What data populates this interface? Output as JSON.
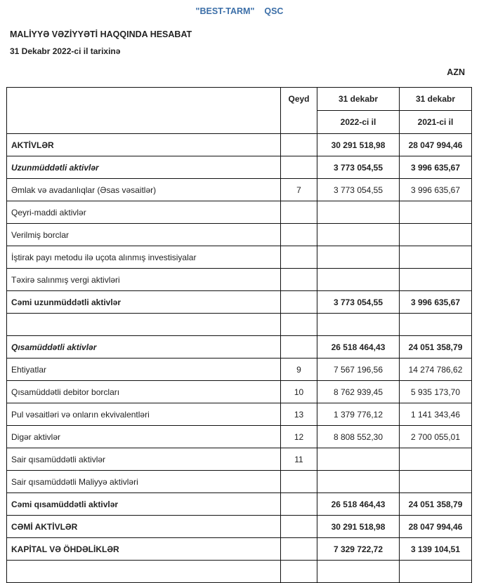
{
  "header": {
    "company_name": "\"BEST-TARM\"",
    "company_form": "QSC",
    "title": "MALİYYƏ VƏZİYYƏTİ HAQQINDA HESABAT",
    "date": "31 Dekabr 2022-ci il tarixinə",
    "currency": "AZN"
  },
  "table": {
    "columns": {
      "note": "Qeyd",
      "col1_top": "31 dekabr",
      "col1_bottom": "2022-ci il",
      "col2_top": "31 dekabr",
      "col2_bottom": "2021-ci il"
    },
    "rows": [
      {
        "label": "AKTİVLƏR",
        "note": "",
        "v2022": "30 291 518,98",
        "v2021": "28 047 994,46",
        "style": "bold"
      },
      {
        "label": "Uzunmüddətli aktivlər",
        "note": "",
        "v2022": "3 773 054,55",
        "v2021": "3 996 635,67",
        "style": "italic"
      },
      {
        "label": "Əmlak və avadanlıqlar (Əsas vəsaitlər)",
        "note": "7",
        "v2022": "3 773 054,55",
        "v2021": "3 996 635,67",
        "style": ""
      },
      {
        "label": "Qeyri-maddi aktivlər",
        "note": "",
        "v2022": "",
        "v2021": "",
        "style": ""
      },
      {
        "label": "Verilmiş borclar",
        "note": "",
        "v2022": "",
        "v2021": "",
        "style": ""
      },
      {
        "label": "İştirak payı metodu ilə uçota alınmış investisiyalar",
        "note": "",
        "v2022": "",
        "v2021": "",
        "style": ""
      },
      {
        "label": "Təxirə salınmış vergi aktivləri",
        "note": "",
        "v2022": "",
        "v2021": "",
        "style": ""
      },
      {
        "label": "Cəmi uzunmüddətli aktivlər",
        "note": "",
        "v2022": "3 773 054,55",
        "v2021": "3 996 635,67",
        "style": "bold"
      },
      {
        "label": "",
        "note": "",
        "v2022": "",
        "v2021": "",
        "style": ""
      },
      {
        "label": "Qısamüddətli aktivlər",
        "note": "",
        "v2022": "26 518 464,43",
        "v2021": "24 051 358,79",
        "style": "italic"
      },
      {
        "label": "Ehtiyatlar",
        "note": "9",
        "v2022": "7 567 196,56",
        "v2021": "14 274 786,62",
        "style": ""
      },
      {
        "label": "Qısamüddətli debitor borcları",
        "note": "10",
        "v2022": "8 762 939,45",
        "v2021": "5 935 173,70",
        "style": ""
      },
      {
        "label": "Pul vəsaitləri və onların ekvivalentləri",
        "note": "13",
        "v2022": "1 379 776,12",
        "v2021": "1 141 343,46",
        "style": ""
      },
      {
        "label": "Digər aktivlər",
        "note": "12",
        "v2022": "8 808 552,30",
        "v2021": "2 700 055,01",
        "style": ""
      },
      {
        "label": "Sair qısamüddətli aktivlər",
        "note": "11",
        "v2022": "",
        "v2021": "",
        "style": ""
      },
      {
        "label": "Sair qısamüddətli Maliyyə aktivləri",
        "note": "",
        "v2022": "",
        "v2021": "",
        "style": ""
      },
      {
        "label": "Cəmi qısamüddətli aktivlər",
        "note": "",
        "v2022": "26 518 464,43",
        "v2021": "24 051 358,79",
        "style": "bold"
      },
      {
        "label": "CƏMİ AKTİVLƏR",
        "note": "",
        "v2022": "30 291 518,98",
        "v2021": "28 047 994,46",
        "style": "bold"
      },
      {
        "label": "KAPİTAL VƏ ÖHDƏLİKLƏR",
        "note": "",
        "v2022": "7 329 722,72",
        "v2021": "3 139 104,51",
        "style": "bold"
      },
      {
        "label": "",
        "note": "",
        "v2022": "",
        "v2021": "",
        "style": ""
      }
    ]
  }
}
